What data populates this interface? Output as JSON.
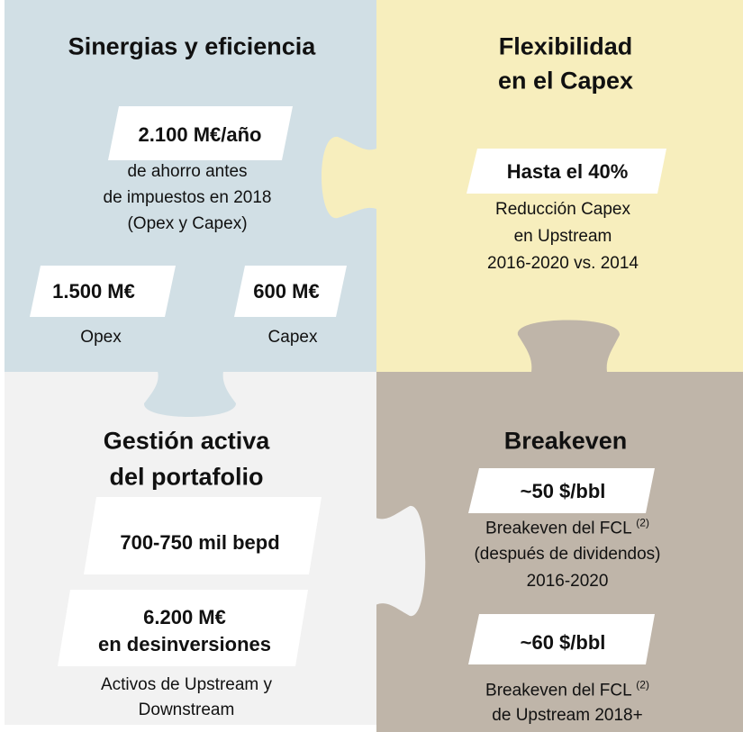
{
  "top_left": {
    "title": "Sinergias y eficiencia",
    "main": {
      "value": "2.100 M€/año",
      "description": [
        "de ahorro antes",
        "de impuestos en 2018",
        "(Opex y Capex)"
      ]
    },
    "items": [
      {
        "value": "1.500 M€",
        "label": "Opex"
      },
      {
        "value": "600 M€",
        "label": "Capex"
      }
    ]
  },
  "top_right": {
    "title": [
      "Flexibilidad",
      "en el Capex"
    ],
    "main": {
      "value": "Hasta el 40%",
      "description": [
        "Reducción Capex",
        "en Upstream",
        "2016-2020 vs. 2014"
      ]
    }
  },
  "bottom_left": {
    "title": [
      "Gestión activa",
      "del portafolio"
    ],
    "items": [
      {
        "value": [
          "700-750 mil bepd"
        ]
      },
      {
        "value": [
          "6.200 M€",
          "en desinversiones"
        ]
      }
    ],
    "description": [
      "Activos de Upstream y",
      "Downstream"
    ]
  },
  "bottom_right": {
    "title": "Breakeven",
    "items": [
      {
        "value": "~50 $/bbl",
        "description": [
          "Breakeven del FCL",
          "(después de dividendos)",
          "2016-2020"
        ],
        "note": "(2)"
      },
      {
        "value": "~60 $/bbl",
        "description": [
          "Breakeven del FCL",
          "de Upstream 2018+"
        ],
        "note": "(2)"
      }
    ]
  }
}
